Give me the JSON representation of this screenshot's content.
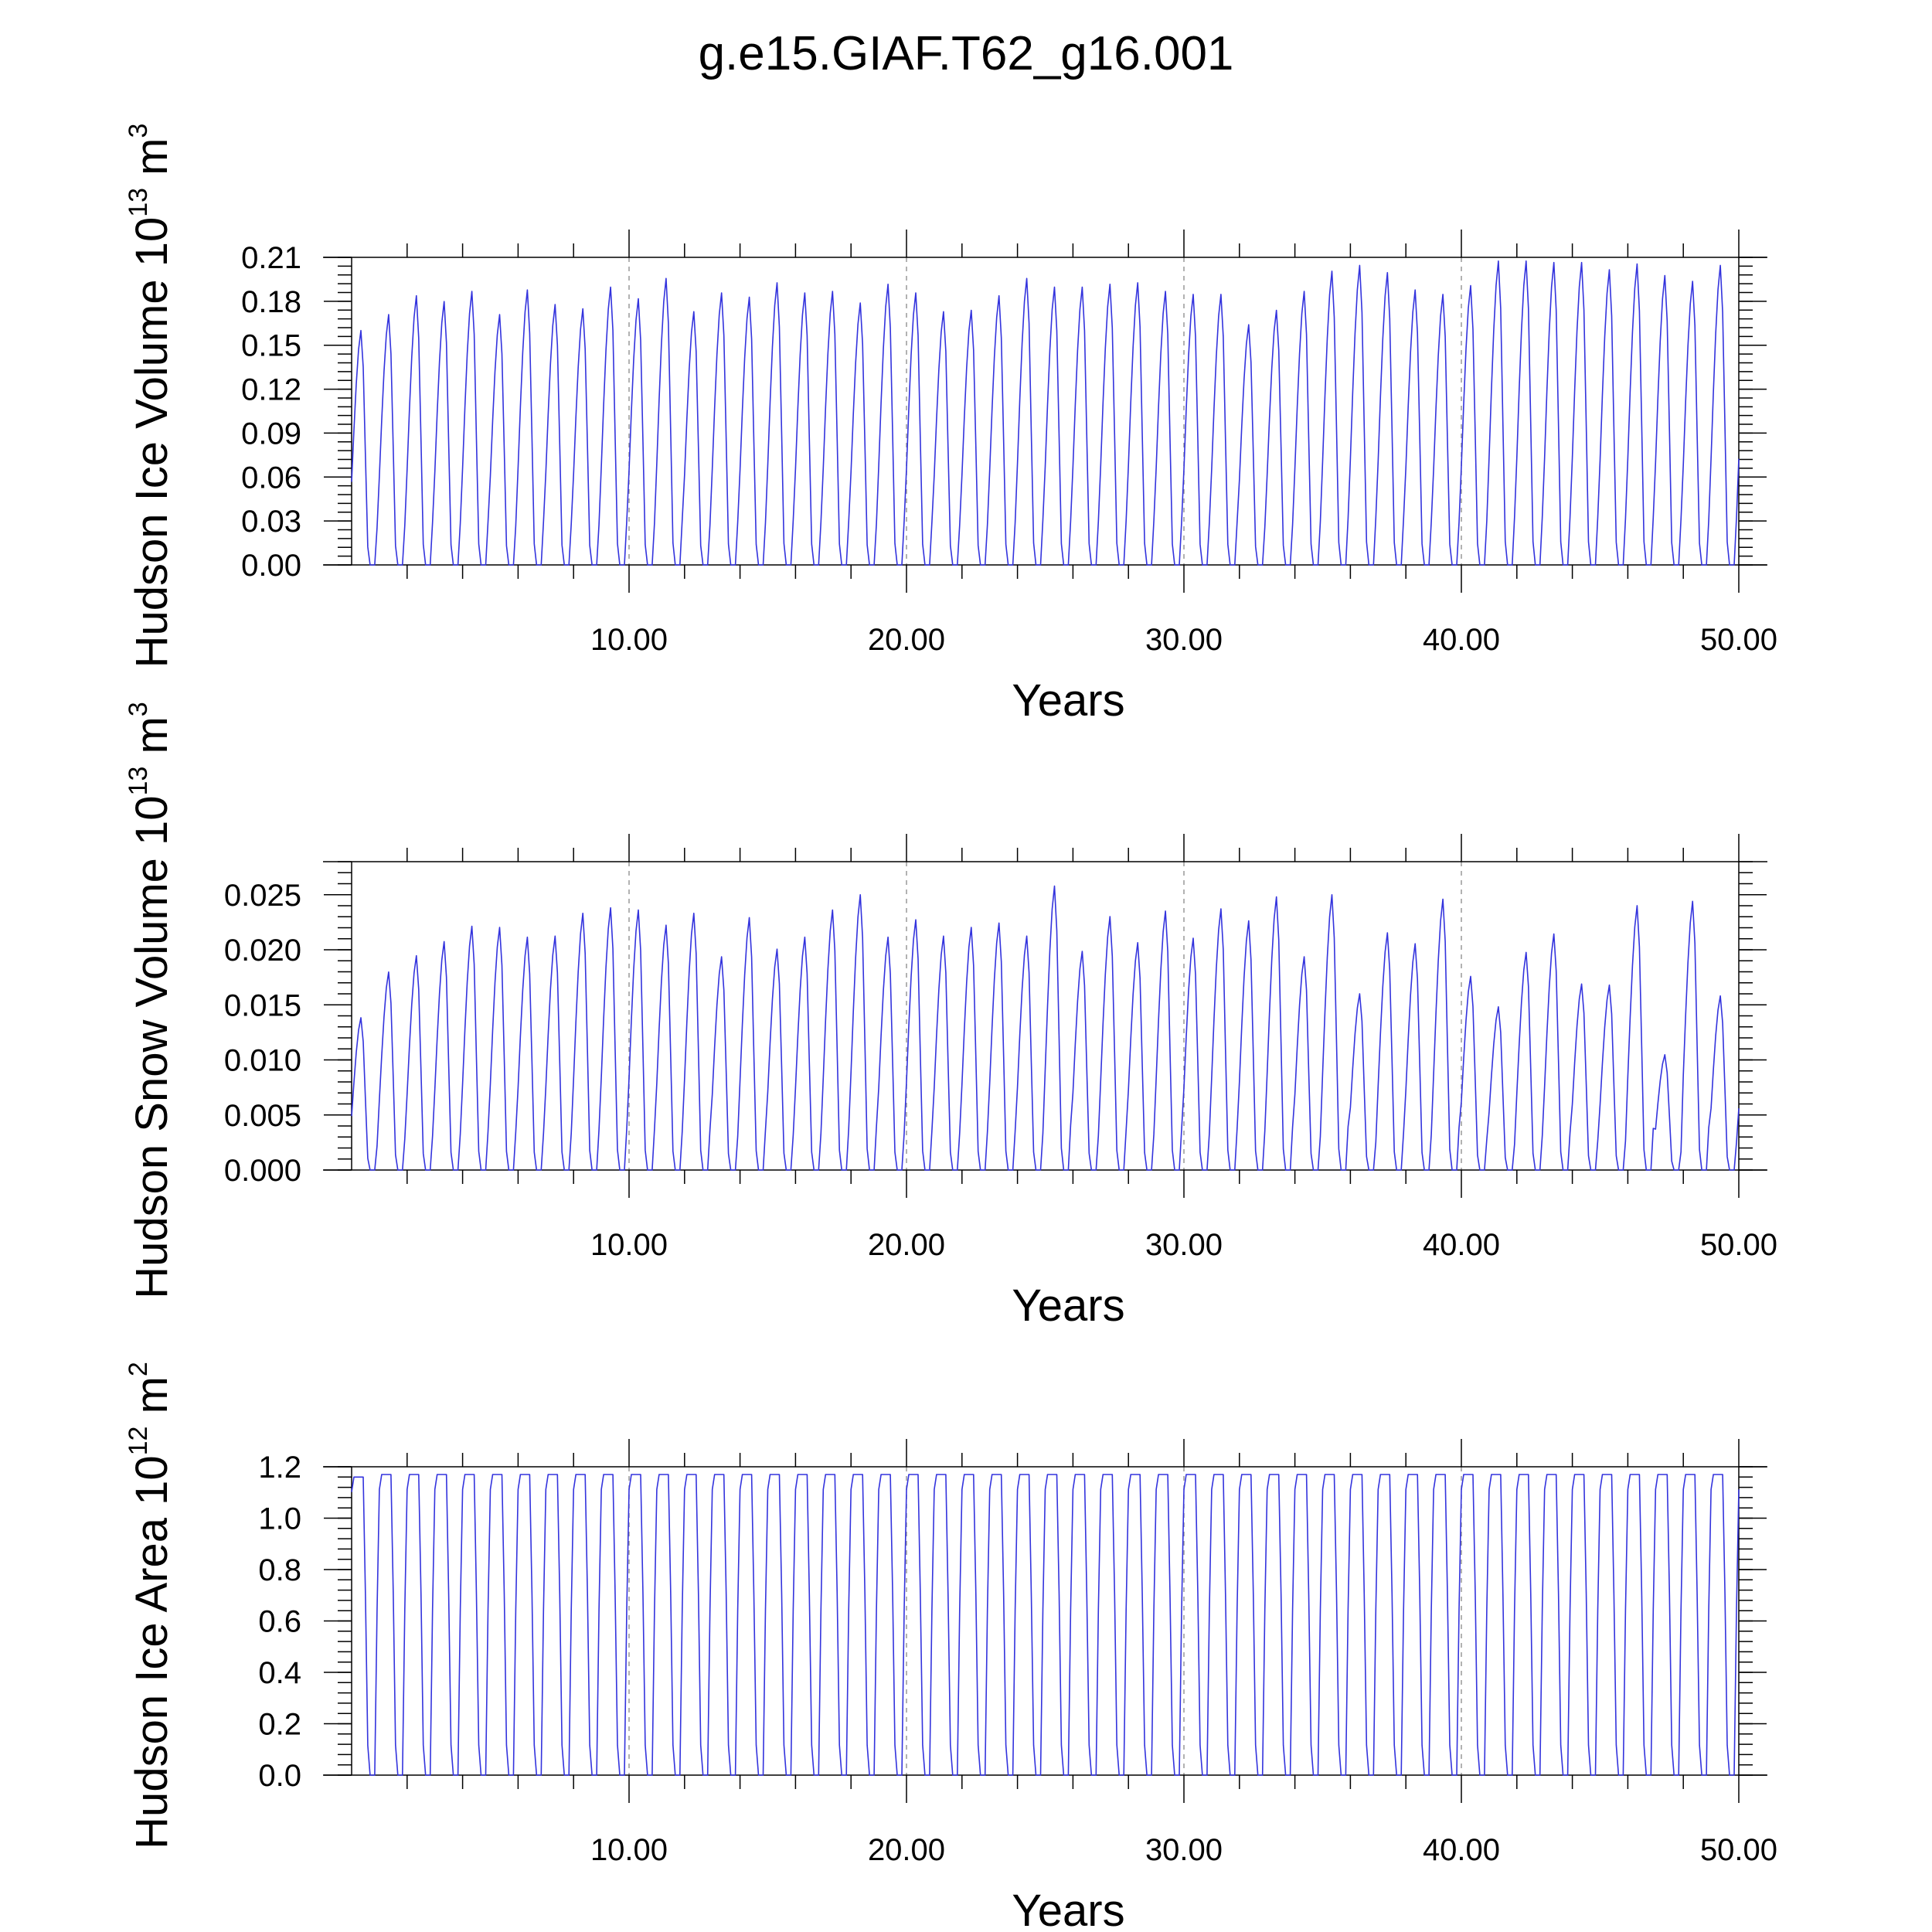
{
  "chart_data": [
    {
      "type": "line",
      "title": "g.e15.GIAF.T62_g16.001",
      "xlabel": "Years",
      "ylabel": "Hudson Ice Volume 10",
      "ylabel_exp": "13",
      "ylabel_unit": " m",
      "ylabel_unit_exp": "3",
      "xlim": [
        0,
        50
      ],
      "ylim": [
        0,
        0.21
      ],
      "x_ticks": [
        10,
        20,
        30,
        40,
        50
      ],
      "x_tick_labels": [
        "10.00",
        "20.00",
        "30.00",
        "40.00",
        "50.00"
      ],
      "y_ticks": [
        0,
        0.03,
        0.06,
        0.09,
        0.12,
        0.15,
        0.18,
        0.21
      ],
      "y_tick_labels": [
        "0.00",
        "0.03",
        "0.06",
        "0.09",
        "0.12",
        "0.15",
        "0.18",
        "0.21"
      ],
      "grid": "vertical dashed at major x ticks",
      "line_color": "#3333dd",
      "series": [
        {
          "years_start": 0,
          "annual_max": [
            0.162,
            0.173,
            0.186,
            0.182,
            0.189,
            0.173,
            0.19,
            0.18,
            0.177,
            0.192,
            0.184,
            0.198,
            0.175,
            0.188,
            0.185,
            0.195,
            0.188,
            0.189,
            0.181,
            0.194,
            0.188,
            0.175,
            0.176,
            0.186,
            0.198,
            0.192,
            0.192,
            0.194,
            0.195,
            0.189,
            0.187,
            0.187,
            0.166,
            0.176,
            0.189,
            0.203,
            0.207,
            0.202,
            0.19,
            0.187,
            0.193,
            0.21,
            0.21,
            0.209,
            0.209,
            0.204,
            0.208,
            0.2,
            0.196,
            0.207
          ],
          "annual_min": 0.0
        }
      ]
    },
    {
      "type": "line",
      "xlabel": "Years",
      "ylabel": "Hudson Snow Volume 10",
      "ylabel_exp": "13",
      "ylabel_unit": " m",
      "ylabel_unit_exp": "3",
      "xlim": [
        0,
        50
      ],
      "ylim": [
        0,
        0.028
      ],
      "x_ticks": [
        10,
        20,
        30,
        40,
        50
      ],
      "x_tick_labels": [
        "10.00",
        "20.00",
        "30.00",
        "40.00",
        "50.00"
      ],
      "y_ticks": [
        0,
        0.005,
        0.01,
        0.015,
        0.02,
        0.025
      ],
      "y_tick_labels": [
        "0.000",
        "0.005",
        "0.010",
        "0.015",
        "0.020",
        "0.025"
      ],
      "grid": "vertical dashed at major x ticks",
      "line_color": "#3333dd",
      "series": [
        {
          "years_start": 0,
          "annual_max": [
            0.014,
            0.0182,
            0.0197,
            0.021,
            0.0224,
            0.0223,
            0.0214,
            0.0215,
            0.0236,
            0.0241,
            0.0239,
            0.0225,
            0.0236,
            0.0196,
            0.0232,
            0.0203,
            0.0214,
            0.0239,
            0.0253,
            0.0214,
            0.023,
            0.0215,
            0.0223,
            0.0227,
            0.0215,
            0.0261,
            0.0201,
            0.0233,
            0.0209,
            0.0238,
            0.0213,
            0.024,
            0.0229,
            0.0251,
            0.0196,
            0.0253,
            0.0162,
            0.0218,
            0.0208,
            0.0249,
            0.0178,
            0.015,
            0.02,
            0.0217,
            0.0171,
            0.017,
            0.0243,
            0.0106,
            0.0247,
            0.016
          ],
          "annual_min": 0.0
        }
      ]
    },
    {
      "type": "line",
      "xlabel": "Years",
      "ylabel": "Hudson Ice Area 10",
      "ylabel_exp": "12",
      "ylabel_unit": " m",
      "ylabel_unit_exp": "2",
      "xlim": [
        0,
        50
      ],
      "ylim": [
        0,
        1.2
      ],
      "x_ticks": [
        10,
        20,
        30,
        40,
        50
      ],
      "x_tick_labels": [
        "10.00",
        "20.00",
        "30.00",
        "40.00",
        "50.00"
      ],
      "y_ticks": [
        0,
        0.2,
        0.4,
        0.6,
        0.8,
        1.0,
        1.2
      ],
      "y_tick_labels": [
        "0.0",
        "0.2",
        "0.4",
        "0.6",
        "0.8",
        "1.0",
        "1.2"
      ],
      "grid": "vertical dashed at major x ticks",
      "line_color": "#3333dd",
      "series": [
        {
          "years_start": 0,
          "annual_max": [
            1.16,
            1.17,
            1.17,
            1.17,
            1.17,
            1.17,
            1.17,
            1.17,
            1.17,
            1.17,
            1.17,
            1.17,
            1.17,
            1.17,
            1.17,
            1.17,
            1.17,
            1.17,
            1.17,
            1.17,
            1.17,
            1.17,
            1.17,
            1.17,
            1.17,
            1.17,
            1.17,
            1.17,
            1.17,
            1.17,
            1.17,
            1.17,
            1.17,
            1.17,
            1.17,
            1.17,
            1.17,
            1.17,
            1.17,
            1.17,
            1.17,
            1.17,
            1.17,
            1.17,
            1.17,
            1.17,
            1.17,
            1.17,
            1.17,
            1.17
          ],
          "annual_min": 0.0
        }
      ]
    }
  ]
}
